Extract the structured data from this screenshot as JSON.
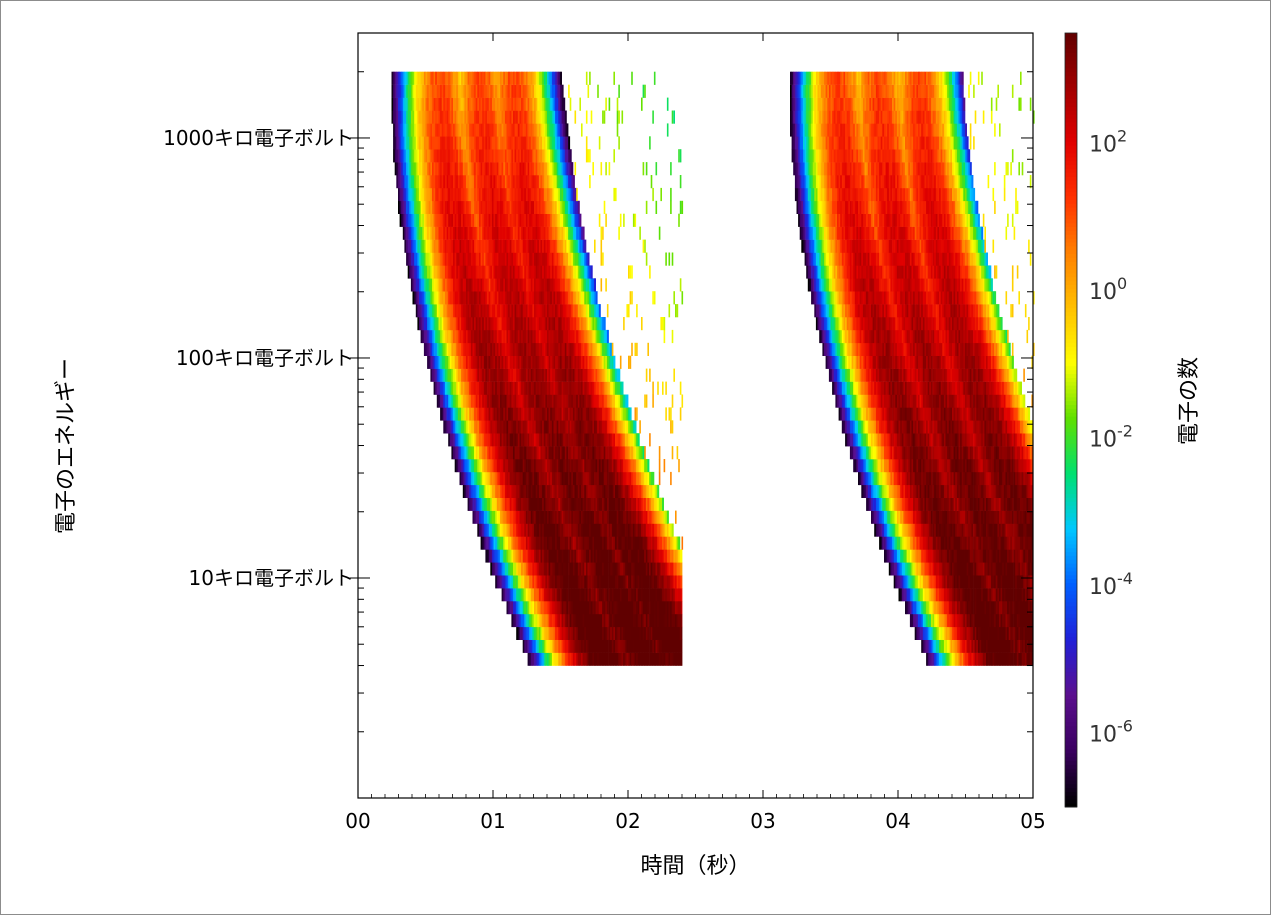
{
  "chart_data": {
    "type": "heatmap",
    "title": "",
    "xlabel": "時間（秒）",
    "ylabel": "電子のエネルギー",
    "colorbar_label": "電子の数",
    "xlim": [
      0,
      5
    ],
    "x_ticks": [
      "00",
      "01",
      "02",
      "03",
      "04",
      "05"
    ],
    "y_scale": "log",
    "y_unit_kev": true,
    "ylim_kev": [
      1,
      3000
    ],
    "y_ticks": [
      {
        "value": 1000,
        "label": "1000キロ電子ボルト"
      },
      {
        "value": 100,
        "label": "100キロ電子ボルト"
      },
      {
        "value": 10,
        "label": "10キロ電子ボルト"
      }
    ],
    "colorbar": {
      "scale": "log",
      "range_exp": [
        -7,
        3.5
      ],
      "ticks": [
        {
          "base": "10",
          "exp": "2"
        },
        {
          "base": "10",
          "exp": "0"
        },
        {
          "base": "10",
          "exp": "-2"
        },
        {
          "base": "10",
          "exp": "-4"
        },
        {
          "base": "10",
          "exp": "-6"
        }
      ],
      "colormap": [
        "#000000",
        "#3a0060",
        "#5b0f8e",
        "#2020d8",
        "#0060ff",
        "#00c8ff",
        "#00e070",
        "#60e000",
        "#ffff00",
        "#ffc000",
        "#ff8000",
        "#ff3000",
        "#e00000",
        "#a00000",
        "#600000"
      ]
    },
    "energy_range_kev": [
      4,
      2000
    ],
    "bursts": [
      {
        "start_s": 0.2,
        "end_s": 1.45,
        "peaks_s": [
          0.6,
          0.9,
          1.15
        ],
        "cutoff_s": 2.4
      },
      {
        "start_s": 3.2,
        "end_s": 4.4,
        "peaks_s": [
          3.55,
          3.85,
          4.15
        ],
        "cutoff_s": 5.0
      }
    ]
  }
}
